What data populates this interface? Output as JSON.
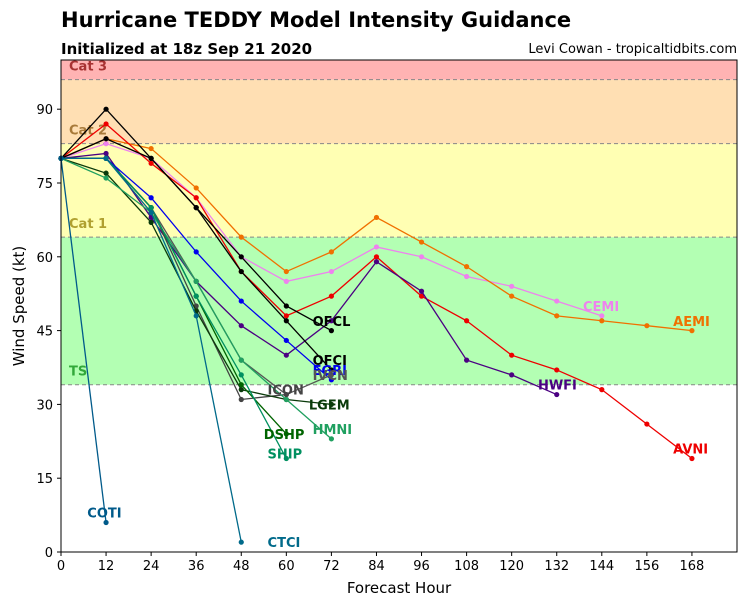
{
  "header": {
    "title": "Hurricane TEDDY Model Intensity Guidance",
    "subtitle": "Initialized at 18z Sep 21 2020",
    "credit": "Levi Cowan - tropicaltidbits.com"
  },
  "chart_data": {
    "type": "line",
    "xlabel": "Forecast Hour",
    "ylabel": "Wind Speed (kt)",
    "xlim": [
      0,
      180
    ],
    "ylim": [
      0,
      100
    ],
    "xticks": [
      0,
      12,
      24,
      36,
      48,
      60,
      72,
      84,
      96,
      108,
      120,
      132,
      144,
      156,
      168
    ],
    "yticks": [
      0,
      15,
      30,
      45,
      60,
      75,
      90
    ],
    "bands": [
      {
        "label": "TS",
        "from": 34,
        "to": 64,
        "color": "#b3ffb3",
        "label_color": "#32a83a"
      },
      {
        "label": "Cat 1",
        "from": 64,
        "to": 83,
        "color": "#ffffb3",
        "label_color": "#b0a030"
      },
      {
        "label": "Cat 2",
        "from": 83,
        "to": 96,
        "color": "#ffdfb3",
        "label_color": "#a87a3a"
      },
      {
        "label": "Cat 3",
        "from": 96,
        "to": 100,
        "color": "#ffb3b3",
        "label_color": "#a83232"
      }
    ],
    "series": [
      {
        "name": "CEMI",
        "color": "#ee82ee",
        "label_x": 139,
        "label_y": 50,
        "points": [
          [
            0,
            80
          ],
          [
            12,
            83
          ],
          [
            24,
            80
          ],
          [
            36,
            72
          ],
          [
            48,
            60
          ],
          [
            60,
            55
          ],
          [
            72,
            57
          ],
          [
            84,
            62
          ],
          [
            96,
            60
          ],
          [
            108,
            56
          ],
          [
            120,
            54
          ],
          [
            132,
            51
          ],
          [
            144,
            48
          ]
        ]
      },
      {
        "name": "AEMI",
        "color": "#f07000",
        "label_x": 163,
        "label_y": 47,
        "points": [
          [
            0,
            80
          ],
          [
            12,
            84
          ],
          [
            24,
            82
          ],
          [
            36,
            74
          ],
          [
            48,
            64
          ],
          [
            60,
            57
          ],
          [
            72,
            61
          ],
          [
            84,
            68
          ],
          [
            96,
            63
          ],
          [
            108,
            58
          ],
          [
            120,
            52
          ],
          [
            132,
            48
          ],
          [
            144,
            47
          ],
          [
            156,
            46
          ],
          [
            168,
            45
          ]
        ]
      },
      {
        "name": "AVNI",
        "color": "#ee0000",
        "label_x": 163,
        "label_y": 21,
        "points": [
          [
            0,
            80
          ],
          [
            12,
            87
          ],
          [
            24,
            79
          ],
          [
            36,
            72
          ],
          [
            48,
            57
          ],
          [
            60,
            48
          ],
          [
            72,
            52
          ],
          [
            84,
            60
          ],
          [
            96,
            52
          ],
          [
            108,
            47
          ],
          [
            120,
            40
          ],
          [
            132,
            37
          ],
          [
            144,
            33
          ],
          [
            156,
            26
          ],
          [
            168,
            19
          ]
        ]
      },
      {
        "name": "HWFI",
        "color": "#4b0082",
        "label_x": 127,
        "label_y": 34,
        "points": [
          [
            0,
            80
          ],
          [
            12,
            81
          ],
          [
            24,
            68
          ],
          [
            36,
            55
          ],
          [
            48,
            46
          ],
          [
            60,
            40
          ],
          [
            72,
            47
          ],
          [
            84,
            59
          ],
          [
            96,
            53
          ],
          [
            108,
            39
          ],
          [
            120,
            36
          ],
          [
            132,
            32
          ]
        ]
      },
      {
        "name": "OFCL",
        "color": "#000000",
        "label_x": 67,
        "label_y": 47,
        "points": [
          [
            0,
            80
          ],
          [
            12,
            90
          ],
          [
            24,
            80
          ],
          [
            36,
            70
          ],
          [
            48,
            60
          ],
          [
            60,
            50
          ],
          [
            72,
            45
          ]
        ]
      },
      {
        "name": "OFCI",
        "color": "#000000",
        "label_x": 67,
        "label_y": 39,
        "points": [
          [
            0,
            80
          ],
          [
            12,
            84
          ],
          [
            24,
            80
          ],
          [
            36,
            70
          ],
          [
            48,
            57
          ],
          [
            60,
            47
          ],
          [
            72,
            37
          ]
        ]
      },
      {
        "name": "EGRI",
        "color": "#0000ee",
        "label_x": 67,
        "label_y": 37,
        "points": [
          [
            0,
            80
          ],
          [
            12,
            80
          ],
          [
            24,
            72
          ],
          [
            36,
            61
          ],
          [
            48,
            51
          ],
          [
            60,
            43
          ],
          [
            72,
            35
          ]
        ]
      },
      {
        "name": "IVCN",
        "color": "#555555",
        "label_x": 67,
        "label_y": 36,
        "points": [
          [
            0,
            80
          ],
          [
            12,
            80
          ],
          [
            24,
            70
          ],
          [
            36,
            55
          ],
          [
            48,
            39
          ],
          [
            60,
            32
          ],
          [
            72,
            36
          ]
        ]
      },
      {
        "name": "ICON",
        "color": "#444444",
        "label_x": 55,
        "label_y": 33,
        "points": [
          [
            0,
            80
          ],
          [
            12,
            80
          ],
          [
            24,
            70
          ],
          [
            36,
            50
          ],
          [
            48,
            31
          ],
          [
            60,
            32
          ]
        ]
      },
      {
        "name": "LGEM",
        "color": "#0a3a0a",
        "label_x": 66,
        "label_y": 30,
        "points": [
          [
            0,
            80
          ],
          [
            12,
            77
          ],
          [
            24,
            67
          ],
          [
            36,
            49
          ],
          [
            48,
            33
          ],
          [
            60,
            31
          ],
          [
            72,
            30
          ]
        ]
      },
      {
        "name": "DSHP",
        "color": "#006400",
        "label_x": 54,
        "label_y": 24,
        "points": [
          [
            0,
            80
          ],
          [
            12,
            80
          ],
          [
            24,
            70
          ],
          [
            36,
            52
          ],
          [
            48,
            34
          ],
          [
            60,
            24
          ]
        ]
      },
      {
        "name": "HMNI",
        "color": "#20a060",
        "label_x": 67,
        "label_y": 25,
        "points": [
          [
            0,
            80
          ],
          [
            12,
            76
          ],
          [
            24,
            69
          ],
          [
            36,
            55
          ],
          [
            48,
            39
          ],
          [
            60,
            31
          ],
          [
            72,
            23
          ]
        ]
      },
      {
        "name": "SHIP",
        "color": "#009060",
        "label_x": 55,
        "label_y": 20,
        "points": [
          [
            0,
            80
          ],
          [
            12,
            80
          ],
          [
            24,
            70
          ],
          [
            36,
            52
          ],
          [
            48,
            36
          ],
          [
            60,
            19
          ]
        ]
      },
      {
        "name": "CTCI",
        "color": "#006a8a",
        "label_x": 55,
        "label_y": 2,
        "points": [
          [
            0,
            80
          ],
          [
            12,
            80
          ],
          [
            24,
            69
          ],
          [
            36,
            48
          ],
          [
            48,
            2
          ]
        ]
      },
      {
        "name": "COTI",
        "color": "#005a8a",
        "label_x": 7,
        "label_y": 8,
        "points": [
          [
            0,
            80
          ],
          [
            12,
            6
          ]
        ]
      }
    ]
  }
}
